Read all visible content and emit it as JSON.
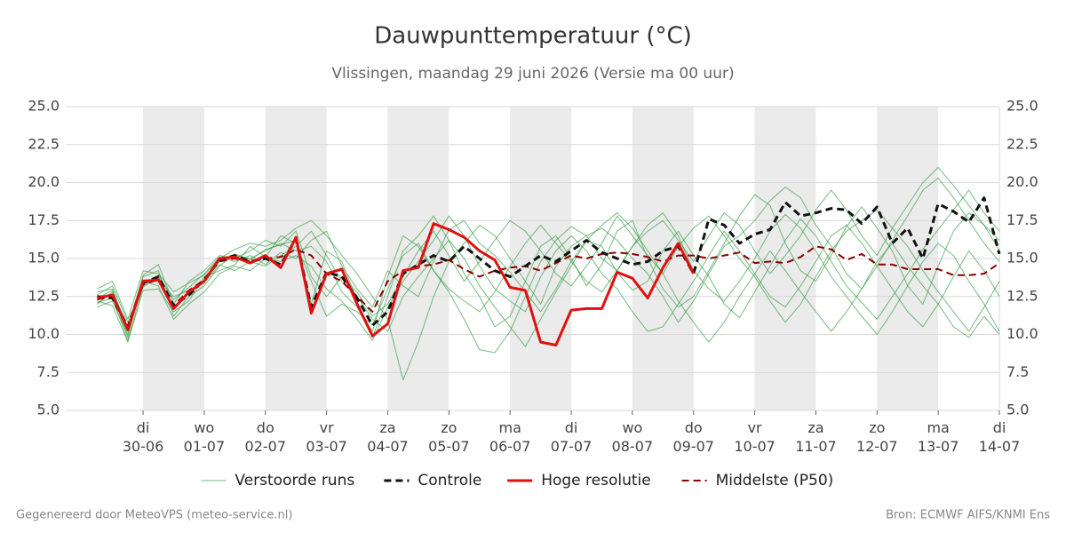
{
  "chart_data": {
    "type": "line",
    "title": "Dauwpunttemperatuur (°C)",
    "subtitle": "Vlissingen, maandag 29 juni 2026 (Versie ma 00 uur)",
    "footer_left": "Gegenereerd door MeteoVPS (meteo-service.nl)",
    "footer_right": "Bron: ECMWF AIFS/KNMI Ens",
    "grid": true,
    "legend": "bottom",
    "xlim": [
      "2026-06-28T18:00",
      "2026-07-14T00:00"
    ],
    "xticks": [
      {
        "value": "2026-06-30T00:00",
        "label": "di 30-06"
      },
      {
        "value": "2026-07-01T00:00",
        "label": "wo 01-07"
      },
      {
        "value": "2026-07-02T00:00",
        "label": "do 02-07"
      },
      {
        "value": "2026-07-03T00:00",
        "label": "vr 03-07"
      },
      {
        "value": "2026-07-04T00:00",
        "label": "za 04-07"
      },
      {
        "value": "2026-07-05T00:00",
        "label": "zo 05-07"
      },
      {
        "value": "2026-07-06T00:00",
        "label": "ma 06-07"
      },
      {
        "value": "2026-07-07T00:00",
        "label": "di 07-07"
      },
      {
        "value": "2026-07-08T00:00",
        "label": "wo 08-07"
      },
      {
        "value": "2026-07-09T00:00",
        "label": "do 09-07"
      },
      {
        "value": "2026-07-10T00:00",
        "label": "vr 10-07"
      },
      {
        "value": "2026-07-11T00:00",
        "label": "za 11-07"
      },
      {
        "value": "2026-07-12T00:00",
        "label": "zo 12-07"
      },
      {
        "value": "2026-07-13T00:00",
        "label": "ma 13-07"
      },
      {
        "value": "2026-07-14T00:00",
        "label": "di 14-07"
      }
    ],
    "ylim": [
      5,
      25
    ],
    "yticks": [
      {
        "value": 5,
        "label": "5.0"
      },
      {
        "value": 7.5,
        "label": "7.5"
      },
      {
        "value": 10,
        "label": "10.0"
      },
      {
        "value": 12.5,
        "label": "12.5"
      },
      {
        "value": 15,
        "label": "15.0"
      },
      {
        "value": 17.5,
        "label": "17.5"
      },
      {
        "value": 20,
        "label": "20.0"
      },
      {
        "value": 22.5,
        "label": "22.5"
      },
      {
        "value": 25,
        "label": "25.0"
      }
    ],
    "x": [
      "2026-06-29T06:00",
      "2026-06-29T12:00",
      "2026-06-29T18:00",
      "2026-06-30T00:00",
      "2026-06-30T06:00",
      "2026-06-30T12:00",
      "2026-06-30T18:00",
      "2026-07-01T00:00",
      "2026-07-01T06:00",
      "2026-07-01T12:00",
      "2026-07-01T18:00",
      "2026-07-02T00:00",
      "2026-07-02T06:00",
      "2026-07-02T12:00",
      "2026-07-02T18:00",
      "2026-07-03T00:00",
      "2026-07-03T06:00",
      "2026-07-03T12:00",
      "2026-07-03T18:00",
      "2026-07-04T00:00",
      "2026-07-04T06:00",
      "2026-07-04T12:00",
      "2026-07-04T18:00",
      "2026-07-05T00:00",
      "2026-07-05T06:00",
      "2026-07-05T12:00",
      "2026-07-05T18:00",
      "2026-07-06T00:00",
      "2026-07-06T06:00",
      "2026-07-06T12:00",
      "2026-07-06T18:00",
      "2026-07-07T00:00",
      "2026-07-07T06:00",
      "2026-07-07T12:00",
      "2026-07-07T18:00",
      "2026-07-08T00:00",
      "2026-07-08T06:00",
      "2026-07-08T12:00",
      "2026-07-08T18:00",
      "2026-07-09T00:00",
      "2026-07-09T06:00",
      "2026-07-09T12:00",
      "2026-07-09T18:00",
      "2026-07-10T00:00",
      "2026-07-10T06:00",
      "2026-07-10T12:00",
      "2026-07-10T18:00",
      "2026-07-11T00:00",
      "2026-07-11T06:00",
      "2026-07-11T12:00",
      "2026-07-11T18:00",
      "2026-07-12T00:00",
      "2026-07-12T06:00",
      "2026-07-12T12:00",
      "2026-07-12T18:00",
      "2026-07-13T00:00",
      "2026-07-13T06:00",
      "2026-07-13T12:00",
      "2026-07-13T18:00",
      "2026-07-14T00:00"
    ],
    "series": [
      {
        "name": "Verstoorde runs",
        "color": "#2e9a3e",
        "linestyle": "solid",
        "linewidth": 1,
        "runs": [
          [
            12.0,
            12.8,
            9.8,
            13.8,
            14.2,
            11.2,
            12.5,
            13.2,
            14.5,
            15.3,
            14.9,
            15.6,
            15.9,
            16.2,
            12.0,
            15.5,
            14.8,
            12.2,
            9.8,
            12.5,
            15.5,
            16.5,
            17.8,
            16.2,
            14.0,
            12.5,
            10.5,
            11.2,
            13.5,
            15.8,
            16.5,
            15.0,
            13.2,
            14.6,
            16.8,
            17.5,
            15.0,
            13.0,
            11.8,
            12.5,
            14.2,
            16.0,
            17.8,
            19.2,
            18.5,
            16.0,
            14.2,
            13.5,
            15.2,
            17.1,
            18.4,
            17.0,
            15.5,
            13.2,
            12.0,
            14.5,
            16.8,
            18.0,
            17.2,
            15.5
          ],
          [
            12.6,
            13.2,
            10.8,
            13.1,
            13.9,
            12.3,
            13.1,
            14.0,
            15.1,
            14.8,
            15.2,
            14.6,
            15.4,
            15.0,
            16.2,
            16.8,
            14.5,
            13.0,
            11.8,
            14.2,
            13.2,
            12.5,
            14.8,
            16.9,
            17.5,
            16.0,
            15.2,
            14.1,
            12.8,
            11.5,
            13.0,
            14.8,
            16.2,
            15.8,
            14.1,
            12.9,
            13.5,
            15.5,
            16.8,
            15.2,
            13.8,
            12.0,
            11.1,
            12.8,
            14.5,
            16.2,
            17.6,
            16.5,
            14.8,
            13.2,
            12.1,
            11.0,
            12.5,
            14.0,
            15.6,
            16.9,
            18.2,
            19.5,
            18.0,
            16.8
          ],
          [
            12.2,
            11.9,
            9.5,
            12.9,
            13.0,
            11.5,
            12.2,
            13.8,
            14.2,
            14.6,
            15.8,
            15.1,
            16.5,
            16.0,
            13.5,
            11.2,
            12.0,
            11.5,
            10.6,
            13.0,
            15.2,
            16.0,
            14.2,
            12.8,
            11.0,
            9.0,
            8.8,
            10.2,
            12.5,
            14.8,
            16.2,
            17.1,
            16.5,
            15.0,
            14.2,
            15.8,
            17.2,
            18.0,
            16.5,
            14.2,
            13.0,
            12.2,
            13.5,
            15.0,
            16.8,
            17.9,
            17.0,
            15.5,
            13.8,
            12.5,
            11.2,
            10.0,
            11.5,
            13.2,
            14.8,
            16.0,
            15.2,
            13.5,
            12.0,
            10.2
          ],
          [
            13.0,
            13.5,
            11.0,
            14.2,
            14.0,
            12.8,
            13.4,
            13.9,
            15.0,
            15.6,
            16.0,
            15.8,
            16.2,
            17.0,
            17.5,
            16.5,
            15.2,
            14.0,
            12.5,
            11.0,
            7.0,
            9.5,
            12.5,
            14.8,
            16.0,
            17.2,
            16.5,
            15.0,
            13.5,
            12.0,
            14.5,
            15.8,
            16.5,
            17.0,
            16.2,
            15.0,
            14.0,
            12.5,
            10.8,
            12.2,
            14.0,
            15.8,
            16.5,
            17.5,
            18.8,
            19.7,
            19.0,
            17.2,
            15.8,
            14.0,
            13.0,
            14.5,
            16.2,
            17.8,
            19.5,
            20.3,
            19.0,
            17.5,
            16.0,
            14.8
          ],
          [
            11.8,
            12.2,
            10.0,
            13.5,
            13.2,
            11.0,
            12.0,
            12.8,
            14.0,
            14.5,
            14.2,
            15.0,
            14.8,
            15.2,
            14.5,
            13.0,
            12.2,
            11.0,
            9.6,
            11.8,
            13.5,
            14.8,
            16.2,
            17.8,
            16.5,
            14.5,
            13.0,
            12.2,
            11.5,
            13.8,
            15.5,
            16.5,
            15.5,
            14.0,
            13.0,
            11.5,
            10.2,
            10.5,
            12.0,
            13.5,
            15.2,
            16.8,
            15.5,
            14.0,
            12.5,
            11.8,
            13.2,
            14.8,
            16.5,
            17.2,
            16.0,
            14.5,
            13.0,
            11.5,
            10.5,
            12.0,
            13.8,
            15.5,
            14.2,
            12.5
          ],
          [
            12.4,
            12.9,
            10.5,
            13.9,
            14.6,
            12.0,
            13.5,
            14.2,
            15.2,
            15.0,
            15.5,
            16.2,
            15.8,
            16.8,
            13.8,
            12.5,
            13.8,
            12.8,
            11.2,
            12.0,
            13.8,
            15.5,
            16.8,
            15.2,
            13.5,
            14.8,
            16.2,
            17.5,
            16.8,
            15.5,
            14.0,
            13.2,
            14.5,
            16.0,
            17.8,
            16.5,
            15.2,
            14.0,
            15.8,
            17.0,
            17.8,
            16.5,
            15.0,
            13.8,
            12.2,
            10.8,
            12.0,
            13.8,
            15.5,
            16.8,
            17.5,
            18.2,
            17.0,
            15.8,
            14.2,
            12.8,
            11.5,
            10.2,
            11.8,
            13.5
          ],
          [
            12.1,
            12.4,
            9.6,
            13.2,
            13.8,
            11.8,
            12.8,
            13.5,
            14.8,
            15.2,
            15.0,
            15.5,
            16.0,
            15.5,
            15.8,
            14.8,
            12.8,
            11.8,
            10.2,
            13.8,
            16.5,
            15.8,
            14.2,
            13.0,
            12.2,
            11.5,
            12.8,
            14.5,
            16.0,
            17.2,
            16.0,
            14.8,
            13.5,
            12.8,
            14.2,
            15.8,
            16.8,
            17.5,
            16.2,
            14.8,
            16.5,
            18.0,
            17.2,
            15.5,
            14.0,
            15.2,
            16.5,
            18.2,
            19.5,
            18.2,
            16.5,
            15.2,
            17.0,
            18.5,
            20.0,
            21.0,
            19.8,
            18.5,
            17.2,
            16.2
          ],
          [
            12.8,
            13.0,
            10.2,
            13.6,
            13.5,
            12.5,
            12.9,
            13.4,
            14.6,
            14.2,
            14.8,
            14.5,
            15.2,
            15.8,
            16.8,
            15.2,
            13.5,
            12.5,
            11.0,
            10.2,
            12.5,
            13.8,
            15.0,
            16.2,
            15.0,
            13.2,
            11.8,
            10.5,
            9.2,
            11.0,
            12.8,
            14.5,
            16.2,
            17.2,
            18.0,
            17.0,
            15.5,
            14.0,
            12.2,
            10.8,
            9.5,
            10.8,
            12.5,
            14.0,
            15.5,
            14.2,
            12.8,
            11.5,
            10.2,
            11.5,
            13.0,
            14.8,
            16.0,
            14.5,
            13.2,
            12.0,
            10.5,
            9.8,
            11.2,
            10.0
          ]
        ]
      },
      {
        "name": "Controle",
        "color": "#111111",
        "linestyle": "dashed",
        "linewidth": 3,
        "values": [
          12.5,
          12.4,
          10.5,
          13.4,
          13.8,
          11.9,
          12.6,
          13.6,
          14.9,
          15.2,
          14.8,
          15.0,
          14.6,
          16.3,
          11.8,
          14.1,
          13.8,
          12.4,
          10.6,
          11.5,
          14.0,
          14.6,
          15.2,
          14.8,
          15.8,
          15.0,
          14.2,
          13.8,
          14.5,
          15.2,
          14.8,
          15.5,
          16.2,
          15.4,
          15.0,
          14.6,
          14.8,
          15.5,
          15.8,
          14.0,
          17.6,
          17.2,
          16.0,
          16.6,
          16.9,
          18.7,
          17.8,
          18.0,
          18.3,
          18.2,
          17.3,
          18.4,
          16.0,
          17.0,
          15.0,
          18.6,
          18.1,
          17.4,
          19.0,
          15.3
        ]
      },
      {
        "name": "Hoge resolutie",
        "color": "#e01010",
        "linestyle": "solid",
        "linewidth": 3,
        "values": [
          12.4,
          12.6,
          10.3,
          13.5,
          13.6,
          11.7,
          12.8,
          13.5,
          15.0,
          15.1,
          14.7,
          15.2,
          14.4,
          16.4,
          11.4,
          14.0,
          14.3,
          12.0,
          9.9,
          10.7,
          14.2,
          14.4,
          17.3,
          16.9,
          16.4,
          15.5,
          14.9,
          13.1,
          12.9,
          9.5,
          9.3,
          11.6,
          11.7,
          11.7,
          14.1,
          13.7,
          12.4,
          14.4,
          16.0,
          14.0,
          null,
          null,
          null,
          null,
          null,
          null,
          null,
          null,
          null,
          null,
          null,
          null,
          null,
          null,
          null,
          null,
          null,
          null,
          null,
          null
        ]
      },
      {
        "name": "Middelste (P50)",
        "color": "#8b0000",
        "linestyle": "dashed",
        "linewidth": 2,
        "values": [
          12.3,
          12.5,
          10.4,
          13.3,
          13.6,
          11.9,
          12.9,
          13.6,
          14.8,
          15.0,
          14.8,
          15.0,
          15.1,
          15.6,
          15.2,
          14.0,
          13.5,
          12.5,
          11.5,
          13.5,
          14.2,
          14.5,
          14.6,
          14.9,
          14.3,
          13.8,
          14.2,
          14.4,
          14.5,
          14.2,
          14.7,
          15.2,
          15.0,
          15.3,
          15.4,
          15.3,
          15.1,
          14.8,
          15.2,
          15.2,
          15.0,
          15.2,
          15.4,
          14.7,
          14.8,
          14.7,
          15.1,
          15.8,
          15.6,
          14.9,
          15.3,
          14.6,
          14.6,
          14.3,
          14.3,
          14.3,
          13.9,
          13.9,
          14.0,
          14.7
        ]
      }
    ]
  }
}
